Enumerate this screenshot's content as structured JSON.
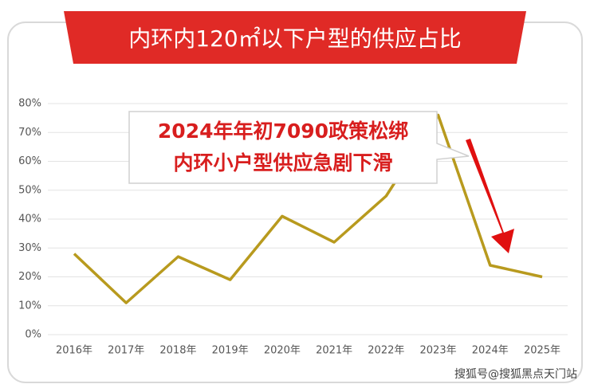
{
  "chart_data": {
    "type": "line",
    "title": "内环内120㎡以下户型的供应占比",
    "annotation": [
      "2024年年初7090政策松绑",
      "内环小户型供应急剧下滑"
    ],
    "watermark": "搜狐号@搜狐黑点天门站",
    "categories": [
      "2016年",
      "2017年",
      "2018年",
      "2019年",
      "2020年",
      "2021年",
      "2022年",
      "2023年",
      "2024年",
      "2025年"
    ],
    "values": [
      28,
      11,
      27,
      19,
      41,
      32,
      48,
      76,
      24,
      20
    ],
    "color": "#b89a1e",
    "ylim": [
      0,
      80
    ],
    "yticks": [
      {
        "value": 0,
        "label": "0%"
      },
      {
        "value": 10,
        "label": "10%"
      },
      {
        "value": 20,
        "label": "20%"
      },
      {
        "value": 30,
        "label": "30%"
      },
      {
        "value": 40,
        "label": "40%"
      },
      {
        "value": 50,
        "label": "50%"
      },
      {
        "value": 60,
        "label": "60%"
      },
      {
        "value": 70,
        "label": "70%"
      },
      {
        "value": 80,
        "label": "80%"
      }
    ],
    "grid": true
  }
}
